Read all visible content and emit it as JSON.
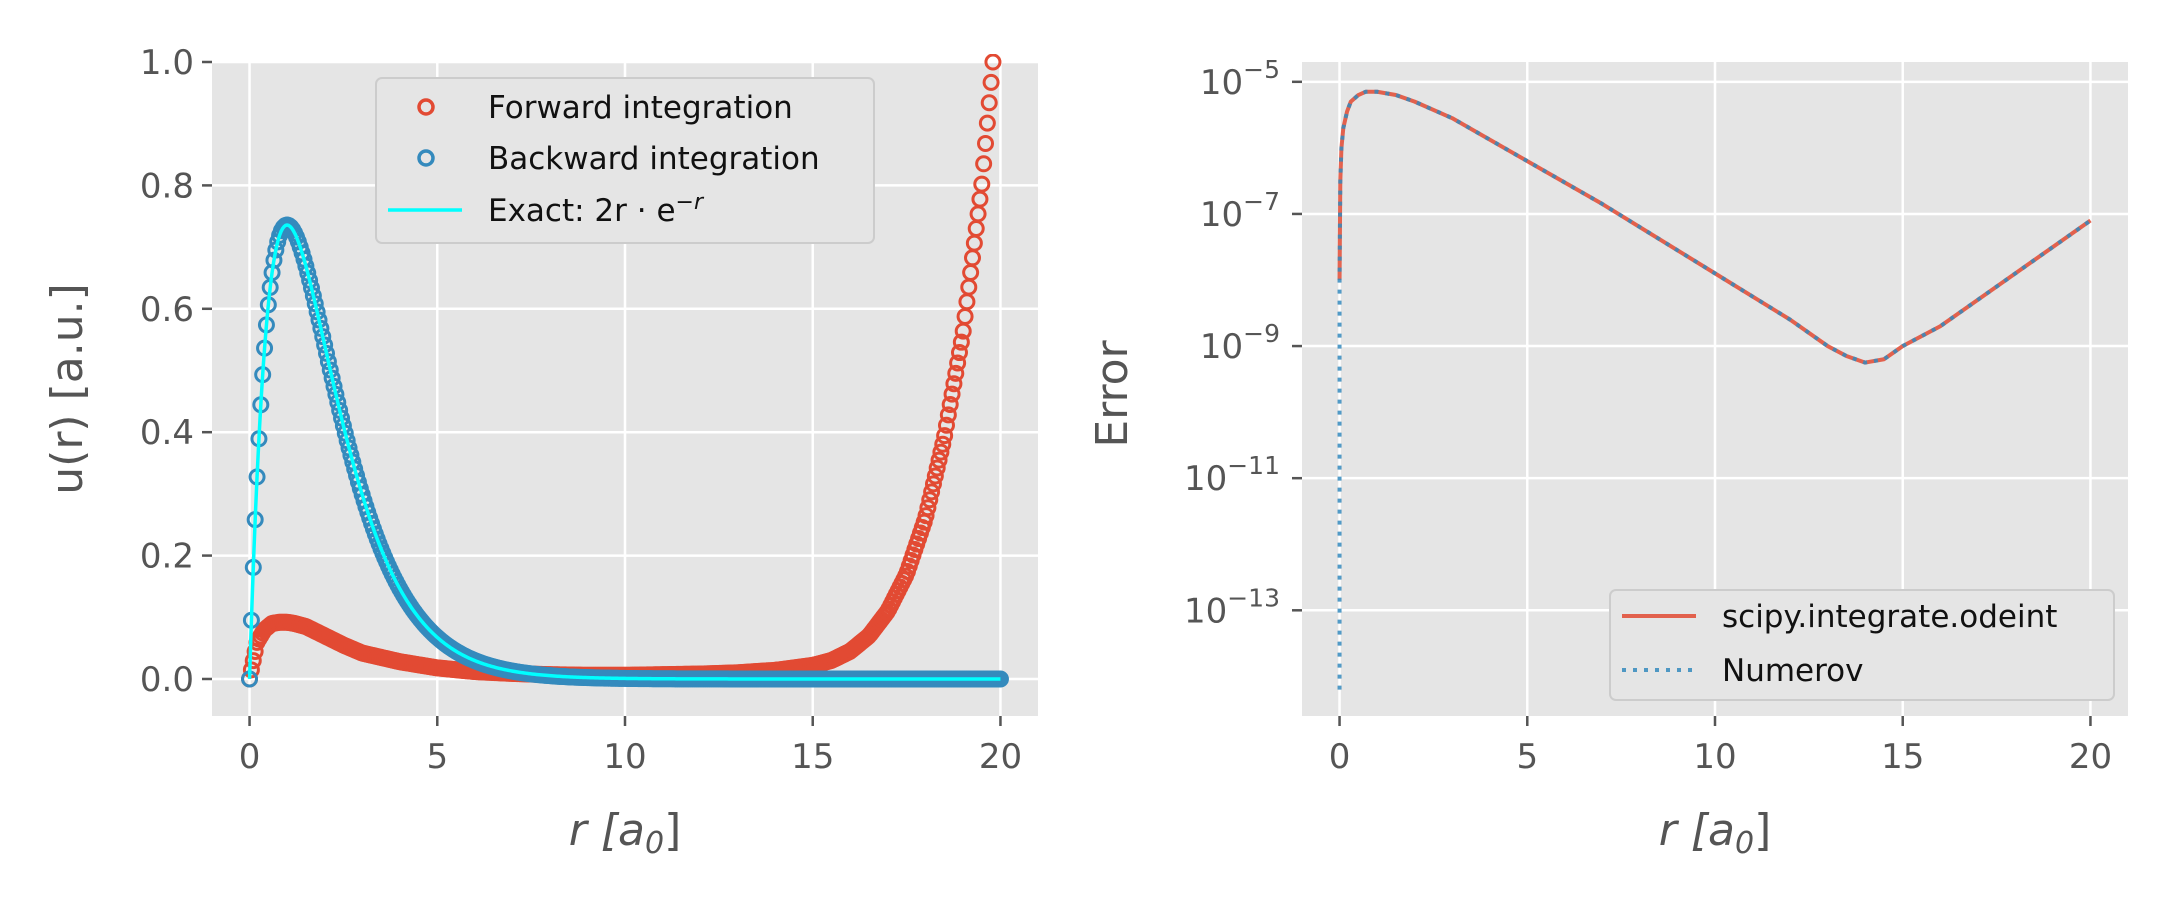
{
  "chart_data": [
    {
      "type": "scatter",
      "title": "",
      "xlabel": "r [a",
      "xlabel_sub": "0",
      "xlabel_tail": "]",
      "ylabel": "u(r) [a.u.]",
      "xlim": [
        -1,
        21
      ],
      "ylim": [
        -0.06,
        1.0
      ],
      "xticks": [
        "0",
        "5",
        "10",
        "15",
        "20"
      ],
      "xtick_values": [
        0,
        5,
        10,
        15,
        20
      ],
      "yticks": [
        "0.0",
        "0.2",
        "0.4",
        "0.6",
        "0.8",
        "1.0"
      ],
      "ytick_values": [
        0,
        0.2,
        0.4,
        0.6,
        0.8,
        1.0
      ],
      "grid": true,
      "legend_placement": "upper center",
      "series": [
        {
          "name": "Forward integration",
          "marker": "open-circle",
          "color": "#E24A33",
          "x": [
            0,
            0.2,
            0.4,
            0.6,
            0.8,
            1.0,
            1.2,
            1.5,
            2.0,
            2.5,
            3.0,
            4.0,
            5.0,
            6.0,
            7.0,
            8.0,
            9.0,
            10.0,
            11.0,
            12.0,
            13.0,
            14.0,
            15.0,
            15.5,
            16.0,
            16.5,
            17.0,
            17.5,
            18.0,
            18.5,
            19.0,
            19.5,
            19.8
          ],
          "y": [
            0,
            0.06,
            0.08,
            0.09,
            0.092,
            0.092,
            0.09,
            0.085,
            0.07,
            0.055,
            0.042,
            0.028,
            0.018,
            0.012,
            0.009,
            0.007,
            0.006,
            0.006,
            0.007,
            0.008,
            0.01,
            0.014,
            0.022,
            0.03,
            0.045,
            0.07,
            0.11,
            0.17,
            0.26,
            0.39,
            0.56,
            0.8,
            1.0
          ]
        },
        {
          "name": "Backward integration",
          "marker": "open-circle",
          "color": "#348ABD",
          "x": [
            0,
            0.2,
            0.4,
            0.6,
            0.8,
            1.0,
            1.2,
            1.5,
            2.0,
            2.5,
            3.0,
            3.5,
            4.0,
            5.0,
            6.0,
            7.0,
            8.0,
            10.0,
            12.0,
            15.0,
            17.0,
            20.0
          ],
          "y": [
            0,
            0.327,
            0.536,
            0.659,
            0.719,
            0.736,
            0.723,
            0.669,
            0.541,
            0.41,
            0.299,
            0.211,
            0.147,
            0.067,
            0.03,
            0.013,
            0.005,
            0.001,
            0.0001,
            0,
            0,
            0
          ]
        },
        {
          "name": "Exact: 2r · e",
          "name_sup": "−r",
          "marker": "line",
          "color": "#00FFFF",
          "formula": "2 r exp(-r)"
        }
      ]
    },
    {
      "type": "line",
      "title": "",
      "xlabel": "r [a",
      "xlabel_sub": "0",
      "xlabel_tail": "]",
      "ylabel": "Error",
      "xlim": [
        -1,
        21
      ],
      "ylim_log10": [
        -14.6,
        -4.7
      ],
      "yscale": "log",
      "xticks": [
        "0",
        "5",
        "10",
        "15",
        "20"
      ],
      "xtick_values": [
        0,
        5,
        10,
        15,
        20
      ],
      "yticks_base": "10",
      "yticks_exp": [
        "−5",
        "−7",
        "−9",
        "−11",
        "−13"
      ],
      "ytick_values_log10": [
        -5,
        -7,
        -9,
        -11,
        -13
      ],
      "grid": true,
      "legend_placement": "lower right",
      "series": [
        {
          "name": "scipy.integrate.odeint",
          "style": "solid",
          "color": "#E24A33",
          "x": [
            0,
            0.02,
            0.05,
            0.1,
            0.2,
            0.3,
            0.5,
            0.7,
            1.0,
            1.5,
            2.0,
            3.0,
            5.0,
            7.0,
            10.0,
            12.0,
            13.0,
            13.5,
            14.0,
            14.5,
            15.0,
            16.0,
            18.0,
            20.0
          ],
          "log10y": [
            -8.0,
            -6.5,
            -6.0,
            -5.7,
            -5.45,
            -5.3,
            -5.2,
            -5.15,
            -5.15,
            -5.2,
            -5.3,
            -5.55,
            -6.2,
            -6.85,
            -7.9,
            -8.6,
            -9.0,
            -9.15,
            -9.25,
            -9.2,
            -9.0,
            -8.7,
            -7.9,
            -7.1
          ]
        },
        {
          "name": "Numerov",
          "style": "dotted",
          "color": "#348ABD",
          "x": [
            0,
            0,
            0.02,
            0.05,
            0.1,
            0.2,
            0.3,
            0.5,
            0.7,
            1.0,
            1.5,
            2.0,
            3.0,
            5.0,
            7.0,
            10.0,
            12.0,
            13.0,
            13.5,
            14.0,
            14.5,
            15.0,
            16.0,
            18.0,
            20.0
          ],
          "log10y": [
            -14.2,
            -8.0,
            -6.5,
            -6.0,
            -5.7,
            -5.45,
            -5.3,
            -5.2,
            -5.15,
            -5.15,
            -5.2,
            -5.3,
            -5.55,
            -6.2,
            -6.85,
            -7.9,
            -8.6,
            -9.0,
            -9.15,
            -9.25,
            -9.2,
            -9.0,
            -8.7,
            -7.9,
            -7.1
          ]
        }
      ]
    }
  ],
  "colors": {
    "axes_bg": "#E5E5E5",
    "grid": "#FFFFFF",
    "text": "#555555",
    "forward": "#E24A33",
    "backward": "#348ABD",
    "exact": "#00FFFF"
  }
}
